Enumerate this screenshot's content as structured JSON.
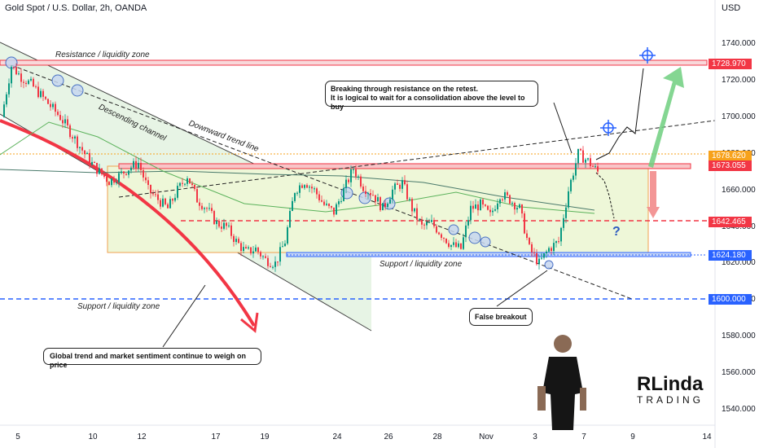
{
  "header": {
    "title": "Gold Spot / U.S. Dollar, 2h, OANDA",
    "currency": "USD"
  },
  "axes": {
    "y_ticks": [
      "1740.000",
      "1720.000",
      "1700.000",
      "1680.000",
      "1660.000",
      "1640.000",
      "1620.000",
      "1600.000",
      "1580.000",
      "1560.000",
      "1540.000"
    ],
    "x_ticks": [
      "5",
      "10",
      "12",
      "17",
      "19",
      "24",
      "26",
      "28",
      "Nov",
      "3",
      "7",
      "9",
      "14"
    ]
  },
  "price_tags": [
    {
      "value": "1728.970",
      "color": "#f23645"
    },
    {
      "value": "1678.620",
      "color": "#f7a21b"
    },
    {
      "value": "1673.055",
      "color": "#f23645"
    },
    {
      "value": "1642.465",
      "color": "#f23645"
    },
    {
      "value": "1624.180",
      "color": "#2962ff"
    },
    {
      "value": "1600.000",
      "color": "#2962ff"
    }
  ],
  "annotations": {
    "resistance_zone": "Resistance / liquidity zone",
    "descending_channel": "Descending channel",
    "downward_trend_line": "Downward trend line",
    "support_zone_right": "Support / liquidity zone",
    "support_zone_left": "Support / liquidity zone",
    "callout_breaking": "Breaking through resistance on the retest.\nIt is logical to wait for a consolidation above the level to buy",
    "callout_false_breakout": "False breakout",
    "callout_global": "Global trend and market sentiment continue to weigh on price",
    "question_mark": "?"
  },
  "logo": {
    "line1": "RLinda",
    "line2": "TRADING"
  },
  "chart_data": {
    "type": "candlestick",
    "instrument": "Gold Spot / U.S. Dollar",
    "timeframe": "2h",
    "source": "OANDA",
    "ylim": [
      1532,
      1756
    ],
    "x_labels": [
      "5",
      "10",
      "12",
      "17",
      "19",
      "24",
      "26",
      "28",
      "Nov",
      "3",
      "7",
      "9",
      "14"
    ],
    "approx_close_path": [
      1700,
      1728,
      1722,
      1718,
      1712,
      1706,
      1700,
      1692,
      1684,
      1676,
      1670,
      1665,
      1668,
      1672,
      1675,
      1660,
      1655,
      1650,
      1660,
      1668,
      1655,
      1650,
      1642,
      1640,
      1632,
      1626,
      1628,
      1622,
      1620,
      1632,
      1660,
      1665,
      1660,
      1652,
      1648,
      1660,
      1672,
      1662,
      1658,
      1650,
      1660,
      1664,
      1650,
      1640,
      1642,
      1636,
      1630,
      1628,
      1650,
      1652,
      1646,
      1658,
      1655,
      1650,
      1628,
      1620,
      1628,
      1632,
      1660,
      1680,
      1676,
      1670
    ],
    "levels": [
      {
        "name": "Resistance / liquidity zone",
        "value": 1728.97
      },
      {
        "name": "",
        "value": 1678.62
      },
      {
        "name": "",
        "value": 1673.055
      },
      {
        "name": "",
        "value": 1642.465
      },
      {
        "name": "Support / liquidity zone",
        "value": 1624.18
      },
      {
        "name": "Support / liquidity zone",
        "value": 1600.0
      }
    ],
    "grid": false
  }
}
